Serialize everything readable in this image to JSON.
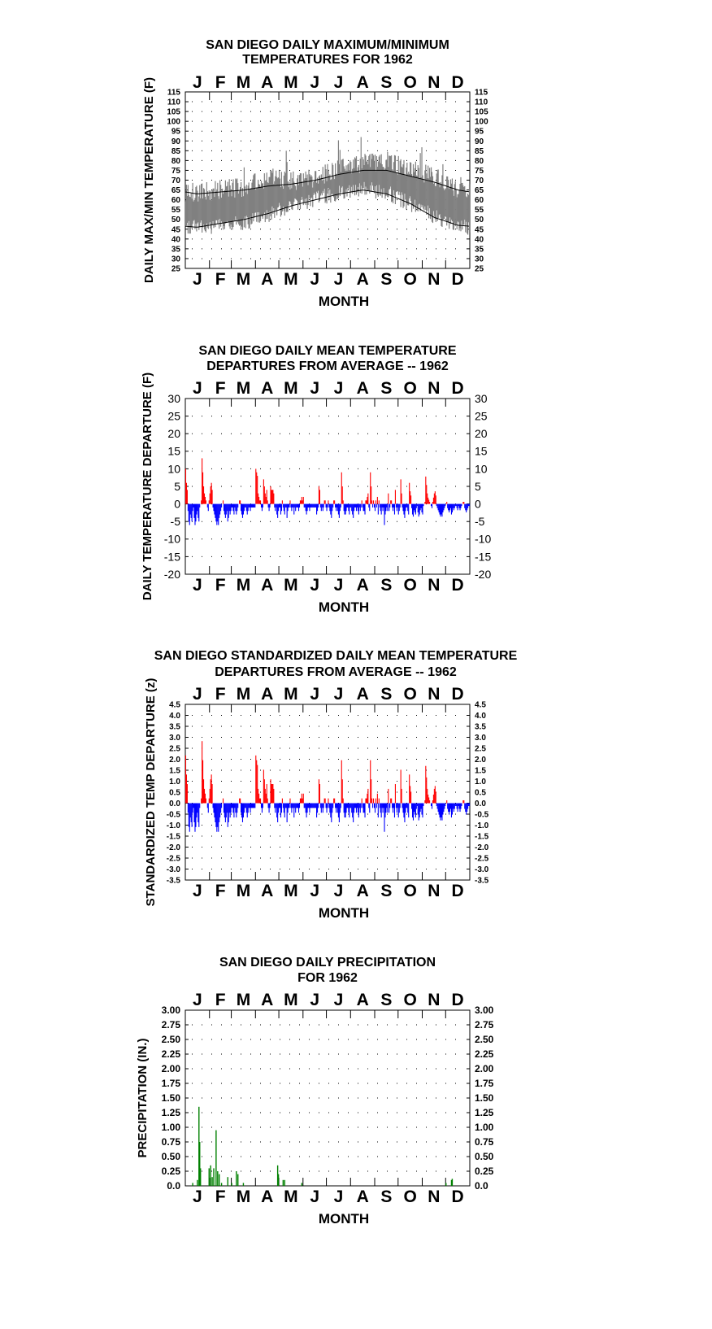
{
  "chart_data": [
    {
      "type": "area",
      "title": [
        "SAN DIEGO DAILY MAXIMUM/MINIMUM",
        "TEMPERATURES FOR 1962"
      ],
      "xlabel": "MONTH",
      "ylabel": "DAILY MAX/MIN TEMPERATURE (F)",
      "months": [
        "J",
        "F",
        "M",
        "A",
        "M",
        "J",
        "J",
        "A",
        "S",
        "O",
        "N",
        "D"
      ],
      "ylim": [
        25,
        115
      ],
      "yticks": [
        25,
        30,
        35,
        40,
        45,
        50,
        55,
        60,
        65,
        70,
        75,
        80,
        85,
        90,
        95,
        100,
        105,
        110,
        115
      ],
      "grid": "dotted",
      "colors": {
        "band": "#808080",
        "normals": "#000000"
      },
      "series": [
        {
          "values_monthly_max": [
            62,
            64,
            65,
            70,
            68,
            70,
            74,
            77,
            78,
            74,
            70,
            63
          ]
        },
        {
          "values_monthly_min": [
            46,
            47,
            49,
            53,
            57,
            61,
            64,
            66,
            64,
            58,
            52,
            47
          ]
        },
        {
          "values_normal_max": [
            63,
            64,
            65,
            67,
            68,
            70,
            73,
            75,
            75,
            72,
            69,
            65
          ]
        },
        {
          "values_normal_min": [
            46,
            48,
            50,
            53,
            57,
            60,
            63,
            65,
            63,
            58,
            51,
            47
          ]
        }
      ]
    },
    {
      "type": "bar",
      "title": [
        "SAN DIEGO DAILY MEAN TEMPERATURE",
        "DEPARTURES FROM AVERAGE -- 1962"
      ],
      "xlabel": "MONTH",
      "ylabel": "DAILY TEMPERATURE DEPARTURE (F)",
      "months": [
        "J",
        "F",
        "M",
        "A",
        "M",
        "J",
        "J",
        "A",
        "S",
        "O",
        "N",
        "D"
      ],
      "ylim": [
        -20,
        30
      ],
      "yticks": [
        -20,
        -15,
        -10,
        -5,
        0,
        5,
        10,
        15,
        20,
        25,
        30
      ],
      "grid": "dotted",
      "colors": {
        "positive": "#ff0000",
        "negative": "#0000ff"
      },
      "values": [
        10,
        6,
        4,
        -2,
        -5,
        -6,
        -3,
        -4,
        -5,
        -2,
        -1,
        -4,
        -6,
        -5,
        -3,
        -2,
        -4,
        -5,
        -1,
        0,
        1,
        13,
        9,
        5,
        3,
        2,
        1,
        0,
        -1,
        -2,
        1,
        3,
        5,
        6,
        4,
        -1,
        -2,
        -3,
        -4,
        -5,
        -6,
        -5,
        -6,
        -4,
        -3,
        -2,
        -1,
        0,
        1,
        -2,
        -3,
        -4,
        -3,
        -2,
        -5,
        -4,
        -2,
        -3,
        -2,
        -1,
        -1,
        -2,
        -3,
        -1,
        -2,
        -3,
        -2,
        -1,
        0,
        1,
        1,
        -2,
        -3,
        -4,
        -3,
        -2,
        -1,
        -1,
        -2,
        -3,
        -2,
        -1,
        -1,
        -2,
        -1,
        -1,
        -1,
        -1,
        -1,
        -1,
        10,
        9,
        8,
        3,
        2,
        1,
        1,
        -1,
        -2,
        -1,
        7,
        5,
        3,
        2,
        4,
        1,
        -1,
        -2,
        -1,
        5,
        4,
        4,
        4,
        3,
        -1,
        -2,
        -1,
        -3,
        -4,
        -2,
        -1,
        -1,
        -3,
        -2,
        1,
        -1,
        -2,
        -3,
        -1,
        -1,
        -4,
        -2,
        -1,
        -1,
        1,
        -1,
        -2,
        -1,
        -1,
        -3,
        -1,
        -2,
        -1,
        -1,
        -1,
        -2,
        -1,
        1,
        1,
        2,
        1,
        2,
        -1,
        -1,
        -2,
        -3,
        -2,
        -1,
        -1,
        -2,
        -1,
        -1,
        -1,
        -1,
        -1,
        -1,
        -1,
        -1,
        -3,
        -2,
        -1,
        5,
        4,
        -1,
        -2,
        -1,
        -2,
        -1,
        1,
        1,
        -1,
        -2,
        -1,
        1,
        -1,
        -2,
        -3,
        -4,
        -2,
        -1,
        1,
        1,
        -1,
        -2,
        -1,
        -2,
        -3,
        -4,
        -2,
        -1,
        9,
        5,
        1,
        -2,
        -3,
        -3,
        -2,
        -1,
        -1,
        -2,
        -3,
        -1,
        -1,
        -2,
        -3,
        -4,
        -2,
        -1,
        -1,
        -2,
        -1,
        -2,
        -3,
        -1,
        -2,
        -1,
        1,
        -1,
        -2,
        -2,
        -3,
        1,
        1,
        2,
        3,
        -1,
        -2,
        9,
        5,
        1,
        -1,
        1,
        -1,
        -2,
        1,
        -1,
        2,
        -3,
        1,
        -1,
        -2,
        -3,
        -1,
        -2,
        -1,
        -6,
        -3,
        -2,
        -1,
        -2,
        3,
        -2,
        -1,
        1,
        1,
        -1,
        -2,
        -1,
        -3,
        4,
        -1,
        -2,
        -1,
        -3,
        -2,
        -1,
        7,
        3,
        -1,
        -2,
        -3,
        -4,
        -2,
        -1,
        -1,
        -2,
        -3
      ],
      "values_note": ""
    },
    {
      "type": "bar",
      "title": [
        "SAN DIEGO STANDARDIZED DAILY MEAN TEMPERATURE",
        "DEPARTURES FROM AVERAGE -- 1962"
      ],
      "xlabel": "MONTH",
      "ylabel": "STANDARDIZED TEMP DEPARTURE (z)",
      "months": [
        "J",
        "F",
        "M",
        "A",
        "M",
        "J",
        "J",
        "A",
        "S",
        "O",
        "N",
        "D"
      ],
      "ylim": [
        -3.5,
        4.5
      ],
      "yticks": [
        -3.5,
        -3.0,
        -2.5,
        -2.0,
        -1.5,
        -1.0,
        -0.5,
        0.0,
        0.5,
        1.0,
        1.5,
        2.0,
        2.5,
        3.0,
        3.5,
        4.0,
        4.5
      ],
      "tick_labels": [
        "-3.5",
        "-3.0",
        "-2.5",
        "-2.0",
        "-1.5",
        "-1.0",
        "-0.5",
        "0.0",
        "0.5",
        "1.0",
        "1.5",
        "2.0",
        "2.5",
        "3.0",
        "3.5",
        "4.0",
        "4.5"
      ],
      "grid": "dotted",
      "colors": {
        "positive": "#ff0000",
        "negative": "#0000ff"
      }
    },
    {
      "type": "bar",
      "title": [
        "SAN DIEGO DAILY PRECIPITATION",
        "FOR 1962"
      ],
      "xlabel": "MONTH",
      "ylabel": "PRECIPITATION (IN.)",
      "months": [
        "J",
        "F",
        "M",
        "A",
        "M",
        "J",
        "J",
        "A",
        "S",
        "O",
        "N",
        "D"
      ],
      "ylim": [
        0,
        3.0
      ],
      "yticks": [
        0,
        0.25,
        0.5,
        0.75,
        1.0,
        1.25,
        1.5,
        1.75,
        2.0,
        2.25,
        2.5,
        2.75,
        3.0
      ],
      "tick_labels": [
        "0.0",
        "0.25",
        "0.50",
        "0.75",
        "1.00",
        "1.25",
        "1.50",
        "1.75",
        "2.00",
        "2.25",
        "2.50",
        "2.75",
        "3.00"
      ],
      "grid": "dotted",
      "colors": {
        "bar": "#008000"
      },
      "events": [
        {
          "day": 10,
          "value": 0.05
        },
        {
          "day": 16,
          "value": 0.1
        },
        {
          "day": 18,
          "value": 1.35
        },
        {
          "day": 19,
          "value": 0.75
        },
        {
          "day": 20,
          "value": 0.3
        },
        {
          "day": 31,
          "value": 0.3
        },
        {
          "day": 33,
          "value": 0.35
        },
        {
          "day": 35,
          "value": 0.15
        },
        {
          "day": 37,
          "value": 0.3
        },
        {
          "day": 40,
          "value": 0.95
        },
        {
          "day": 42,
          "value": 0.25
        },
        {
          "day": 44,
          "value": 0.2
        },
        {
          "day": 47,
          "value": 0.05
        },
        {
          "day": 55,
          "value": 0.15
        },
        {
          "day": 60,
          "value": 0.05
        },
        {
          "day": 66,
          "value": 0.25
        },
        {
          "day": 68,
          "value": 0.2
        },
        {
          "day": 75,
          "value": 0.05
        },
        {
          "day": 119,
          "value": 0.35
        },
        {
          "day": 120,
          "value": 0.2
        },
        {
          "day": 126,
          "value": 0.1
        },
        {
          "day": 128,
          "value": 0.1
        },
        {
          "day": 150,
          "value": 0.05
        },
        {
          "day": 335,
          "value": 0.05
        },
        {
          "day": 342,
          "value": 0.1
        },
        {
          "day": 343,
          "value": 0.12
        }
      ]
    }
  ]
}
